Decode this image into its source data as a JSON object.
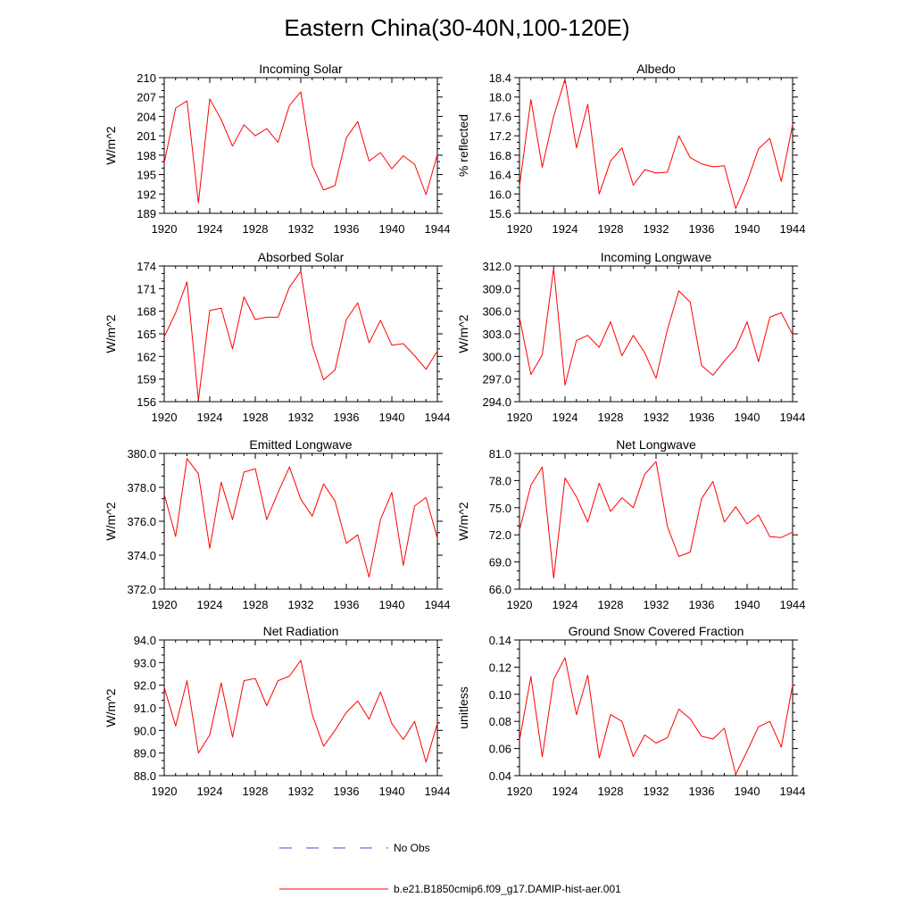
{
  "figure": {
    "title": "Eastern China(30-40N,100-120E)"
  },
  "legend": [
    {
      "label": "No Obs",
      "color": "#4a4ad8",
      "style": "dashed"
    },
    {
      "label": "b.e21.B1850cmip6.f09_g17.DAMIP-hist-aer.001",
      "color": "#ff0000",
      "style": "solid"
    }
  ],
  "colors": {
    "model_line": "#ff0000",
    "obs_line": "#4a4ad8",
    "axis": "#000000"
  },
  "chart_data": [
    {
      "type": "line",
      "title": "Incoming Solar",
      "ylabel": "W/m^2",
      "xlim": [
        1920,
        1944
      ],
      "ylim": [
        189,
        210
      ],
      "xticks": [
        "1920",
        "1924",
        "1928",
        "1932",
        "1936",
        "1940",
        "1944"
      ],
      "yticks": [
        "189",
        "192",
        "195",
        "198",
        "201",
        "204",
        "207",
        "210"
      ],
      "x": [
        1920,
        1921,
        1922,
        1923,
        1924,
        1925,
        1926,
        1927,
        1928,
        1929,
        1930,
        1931,
        1932,
        1933,
        1934,
        1935,
        1936,
        1937,
        1938,
        1939,
        1940,
        1941,
        1942,
        1943,
        1944
      ],
      "series": [
        {
          "values": [
            196.8,
            205.3,
            206.4,
            190.6,
            206.7,
            203.5,
            199.4,
            202.7,
            201.0,
            202.1,
            200.0,
            205.7,
            207.8,
            196.4,
            192.6,
            193.3,
            200.7,
            203.2,
            197.1,
            198.4,
            195.9,
            197.9,
            196.6,
            191.9,
            198.1
          ]
        }
      ]
    },
    {
      "type": "line",
      "title": "Albedo",
      "ylabel": "% reflected",
      "xlim": [
        1920,
        1944
      ],
      "ylim": [
        15.6,
        18.4
      ],
      "xticks": [
        "1920",
        "1924",
        "1928",
        "1932",
        "1936",
        "1940",
        "1944"
      ],
      "yticks": [
        "15.6",
        "16.0",
        "16.4",
        "16.8",
        "17.2",
        "17.6",
        "18.0",
        "18.4"
      ],
      "x": [
        1920,
        1921,
        1922,
        1923,
        1924,
        1925,
        1926,
        1927,
        1928,
        1929,
        1930,
        1931,
        1932,
        1933,
        1934,
        1935,
        1936,
        1937,
        1938,
        1939,
        1940,
        1941,
        1942,
        1943,
        1944
      ],
      "series": [
        {
          "values": [
            16.15,
            17.95,
            16.55,
            17.6,
            18.37,
            16.95,
            17.85,
            16.0,
            16.68,
            16.95,
            16.18,
            16.5,
            16.43,
            16.45,
            17.2,
            16.75,
            16.62,
            16.56,
            16.58,
            15.7,
            16.25,
            16.93,
            17.15,
            16.26,
            17.43
          ]
        }
      ]
    },
    {
      "type": "line",
      "title": "Absorbed Solar",
      "ylabel": "W/m^2",
      "xlim": [
        1920,
        1944
      ],
      "ylim": [
        156,
        174
      ],
      "xticks": [
        "1920",
        "1924",
        "1928",
        "1932",
        "1936",
        "1940",
        "1944"
      ],
      "yticks": [
        "156",
        "159",
        "162",
        "165",
        "168",
        "171",
        "174"
      ],
      "x": [
        1920,
        1921,
        1922,
        1923,
        1924,
        1925,
        1926,
        1927,
        1928,
        1929,
        1930,
        1931,
        1932,
        1933,
        1934,
        1935,
        1936,
        1937,
        1938,
        1939,
        1940,
        1941,
        1942,
        1943,
        1944
      ],
      "series": [
        {
          "values": [
            164.6,
            167.8,
            171.9,
            156.2,
            168.1,
            168.4,
            163.0,
            169.9,
            166.9,
            167.2,
            167.2,
            171.2,
            173.3,
            163.5,
            158.9,
            160.2,
            166.9,
            169.1,
            163.8,
            166.8,
            163.5,
            163.7,
            162.1,
            160.3,
            162.7
          ]
        }
      ]
    },
    {
      "type": "line",
      "title": "Incoming Longwave",
      "ylabel": "W/m^2",
      "xlim": [
        1920,
        1944
      ],
      "ylim": [
        294,
        312
      ],
      "xticks": [
        "1920",
        "1924",
        "1928",
        "1932",
        "1936",
        "1940",
        "1944"
      ],
      "yticks": [
        "294.0",
        "297.0",
        "300.0",
        "303.0",
        "306.0",
        "309.0",
        "312.0"
      ],
      "x": [
        1920,
        1921,
        1922,
        1923,
        1924,
        1925,
        1926,
        1927,
        1928,
        1929,
        1930,
        1931,
        1932,
        1933,
        1934,
        1935,
        1936,
        1937,
        1938,
        1939,
        1940,
        1941,
        1942,
        1943,
        1944
      ],
      "series": [
        {
          "values": [
            305.2,
            297.6,
            300.2,
            311.7,
            296.2,
            302.1,
            302.8,
            301.2,
            304.6,
            300.1,
            302.8,
            300.5,
            297.1,
            303.6,
            308.7,
            307.2,
            298.8,
            297.5,
            299.4,
            301.1,
            304.6,
            299.3,
            305.2,
            305.8,
            302.9
          ]
        }
      ]
    },
    {
      "type": "line",
      "title": "Emitted Longwave",
      "ylabel": "W/m^2",
      "xlim": [
        1920,
        1944
      ],
      "ylim": [
        372,
        380
      ],
      "xticks": [
        "1920",
        "1924",
        "1928",
        "1932",
        "1936",
        "1940",
        "1944"
      ],
      "yticks": [
        "372.0",
        "374.0",
        "376.0",
        "378.0",
        "380.0"
      ],
      "x": [
        1920,
        1921,
        1922,
        1923,
        1924,
        1925,
        1926,
        1927,
        1928,
        1929,
        1930,
        1931,
        1932,
        1933,
        1934,
        1935,
        1936,
        1937,
        1938,
        1939,
        1940,
        1941,
        1942,
        1943,
        1944
      ],
      "series": [
        {
          "values": [
            377.6,
            375.1,
            379.7,
            378.8,
            374.4,
            378.3,
            376.1,
            378.9,
            379.1,
            376.1,
            377.7,
            379.2,
            377.3,
            376.3,
            378.2,
            377.2,
            374.7,
            375.2,
            372.7,
            376.1,
            377.7,
            373.4,
            376.9,
            377.4,
            375.0
          ]
        }
      ]
    },
    {
      "type": "line",
      "title": "Net Longwave",
      "ylabel": "W/m^2",
      "xlim": [
        1920,
        1944
      ],
      "ylim": [
        66,
        81
      ],
      "xticks": [
        "1920",
        "1924",
        "1928",
        "1932",
        "1936",
        "1940",
        "1944"
      ],
      "yticks": [
        "66.0",
        "69.0",
        "72.0",
        "75.0",
        "78.0",
        "81.0"
      ],
      "x": [
        1920,
        1921,
        1922,
        1923,
        1924,
        1925,
        1926,
        1927,
        1928,
        1929,
        1930,
        1931,
        1932,
        1933,
        1934,
        1935,
        1936,
        1937,
        1938,
        1939,
        1940,
        1941,
        1942,
        1943,
        1944
      ],
      "series": [
        {
          "values": [
            72.5,
            77.5,
            79.5,
            67.2,
            78.3,
            76.2,
            73.4,
            77.7,
            74.6,
            76.1,
            75.0,
            78.7,
            80.1,
            72.9,
            69.6,
            70.1,
            76.0,
            77.9,
            73.4,
            75.1,
            73.2,
            74.2,
            71.8,
            71.7,
            72.3
          ]
        }
      ]
    },
    {
      "type": "line",
      "title": "Net Radiation",
      "ylabel": "W/m^2",
      "xlim": [
        1920,
        1944
      ],
      "ylim": [
        88,
        94
      ],
      "xticks": [
        "1920",
        "1924",
        "1928",
        "1932",
        "1936",
        "1940",
        "1944"
      ],
      "yticks": [
        "88.0",
        "89.0",
        "90.0",
        "91.0",
        "92.0",
        "93.0",
        "94.0"
      ],
      "x": [
        1920,
        1921,
        1922,
        1923,
        1924,
        1925,
        1926,
        1927,
        1928,
        1929,
        1930,
        1931,
        1932,
        1933,
        1934,
        1935,
        1936,
        1937,
        1938,
        1939,
        1940,
        1941,
        1942,
        1943,
        1944
      ],
      "series": [
        {
          "values": [
            91.9,
            90.2,
            92.2,
            89.0,
            89.8,
            92.1,
            89.7,
            92.2,
            92.3,
            91.1,
            92.2,
            92.4,
            93.1,
            90.7,
            89.3,
            90.0,
            90.8,
            91.3,
            90.5,
            91.7,
            90.3,
            89.6,
            90.4,
            88.6,
            90.3
          ]
        }
      ]
    },
    {
      "type": "line",
      "title": "Ground Snow Covered Fraction",
      "ylabel": "unitless",
      "xlim": [
        1920,
        1944
      ],
      "ylim": [
        0.04,
        0.14
      ],
      "xticks": [
        "1920",
        "1924",
        "1928",
        "1932",
        "1936",
        "1940",
        "1944"
      ],
      "yticks": [
        "0.04",
        "0.06",
        "0.08",
        "0.10",
        "0.12",
        "0.14"
      ],
      "x": [
        1920,
        1921,
        1922,
        1923,
        1924,
        1925,
        1926,
        1927,
        1928,
        1929,
        1930,
        1931,
        1932,
        1933,
        1934,
        1935,
        1936,
        1937,
        1938,
        1939,
        1940,
        1941,
        1942,
        1943,
        1944
      ],
      "series": [
        {
          "values": [
            0.066,
            0.113,
            0.054,
            0.111,
            0.127,
            0.085,
            0.114,
            0.053,
            0.085,
            0.08,
            0.054,
            0.07,
            0.064,
            0.068,
            0.089,
            0.082,
            0.069,
            0.067,
            0.075,
            0.041,
            0.058,
            0.076,
            0.08,
            0.061,
            0.107
          ]
        }
      ]
    }
  ]
}
